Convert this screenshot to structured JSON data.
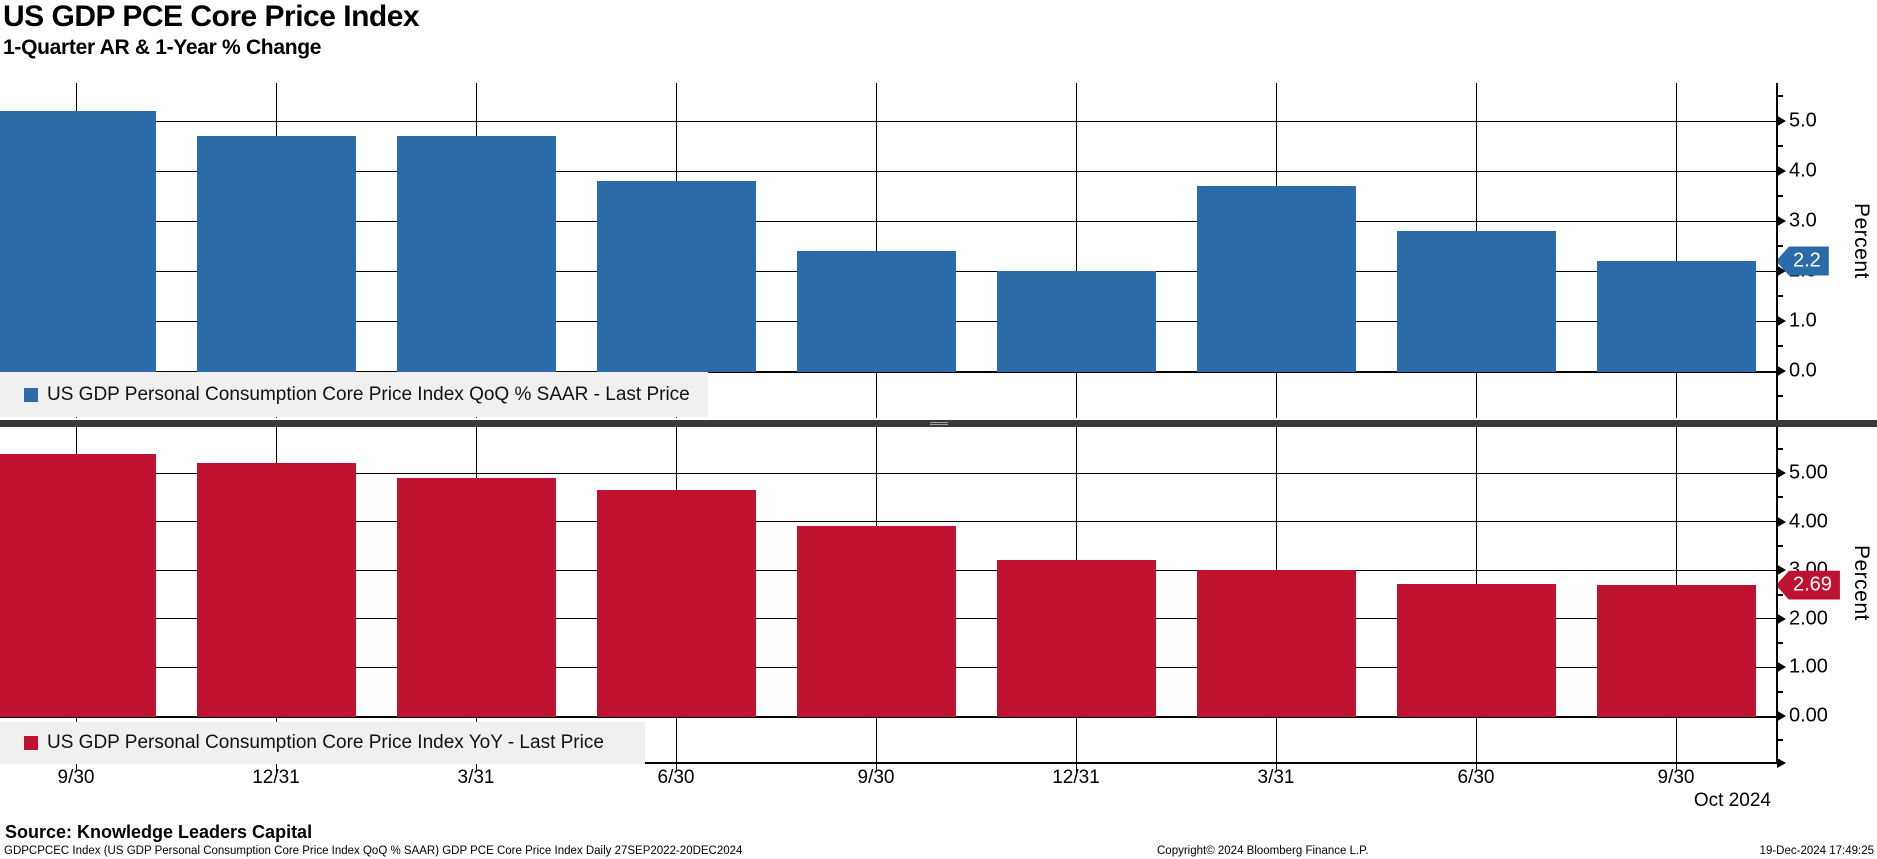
{
  "header": {
    "title": "US GDP PCE Core Price Index",
    "subtitle": "1-Quarter AR & 1-Year % Change"
  },
  "chart_data": [
    {
      "type": "bar",
      "panel": "top",
      "legend": "US GDP Personal Consumption Core Price Index QoQ % SAAR - Last Price",
      "categories": [
        "9/30",
        "12/31",
        "3/31",
        "6/30",
        "9/30",
        "12/31",
        "3/31",
        "6/30",
        "9/30"
      ],
      "values": [
        5.2,
        4.7,
        4.7,
        3.8,
        2.4,
        2.0,
        3.7,
        2.8,
        2.2
      ],
      "last_price_label": "2.2",
      "ylabel": "Percent",
      "ytick_labels": [
        "5.0",
        "4.0",
        "3.0",
        "2.0",
        "1.0",
        "0.0"
      ],
      "ylim": [
        0,
        5.8
      ],
      "grid": true,
      "legend_position": "bottom-left",
      "color": "#2B6CA8"
    },
    {
      "type": "bar",
      "panel": "bottom",
      "legend": "US GDP Personal Consumption Core Price Index YoY - Last Price",
      "categories": [
        "9/30",
        "12/31",
        "3/31",
        "6/30",
        "9/30",
        "12/31",
        "3/31",
        "6/30",
        "9/30"
      ],
      "values": [
        5.4,
        5.2,
        4.9,
        4.65,
        3.9,
        3.2,
        3.0,
        2.72,
        2.69
      ],
      "last_price_label": "2.69",
      "ylabel": "Percent",
      "ytick_labels": [
        "5.00",
        "4.00",
        "3.00",
        "2.00",
        "1.00",
        "0.00"
      ],
      "ylim": [
        -1,
        5.9
      ],
      "grid": true,
      "legend_position": "bottom-left",
      "color": "#BE1230"
    }
  ],
  "xaxis": {
    "labels": [
      "9/30",
      "12/31",
      "3/31",
      "6/30",
      "9/30",
      "12/31",
      "3/31",
      "6/30",
      "9/30"
    ],
    "period_label": "Oct 2024"
  },
  "footer": {
    "source": "Source: Knowledge Leaders Capital",
    "ticker_line": "GDPCPCEC Index (US GDP Personal Consumption Core Price Index QoQ % SAAR) GDP PCE Core Price Index  Daily 27SEP2022-20DEC2024",
    "copyright": "Copyright© 2024 Bloomberg Finance L.P.",
    "timestamp": "19-Dec-2024 17:49:25"
  }
}
